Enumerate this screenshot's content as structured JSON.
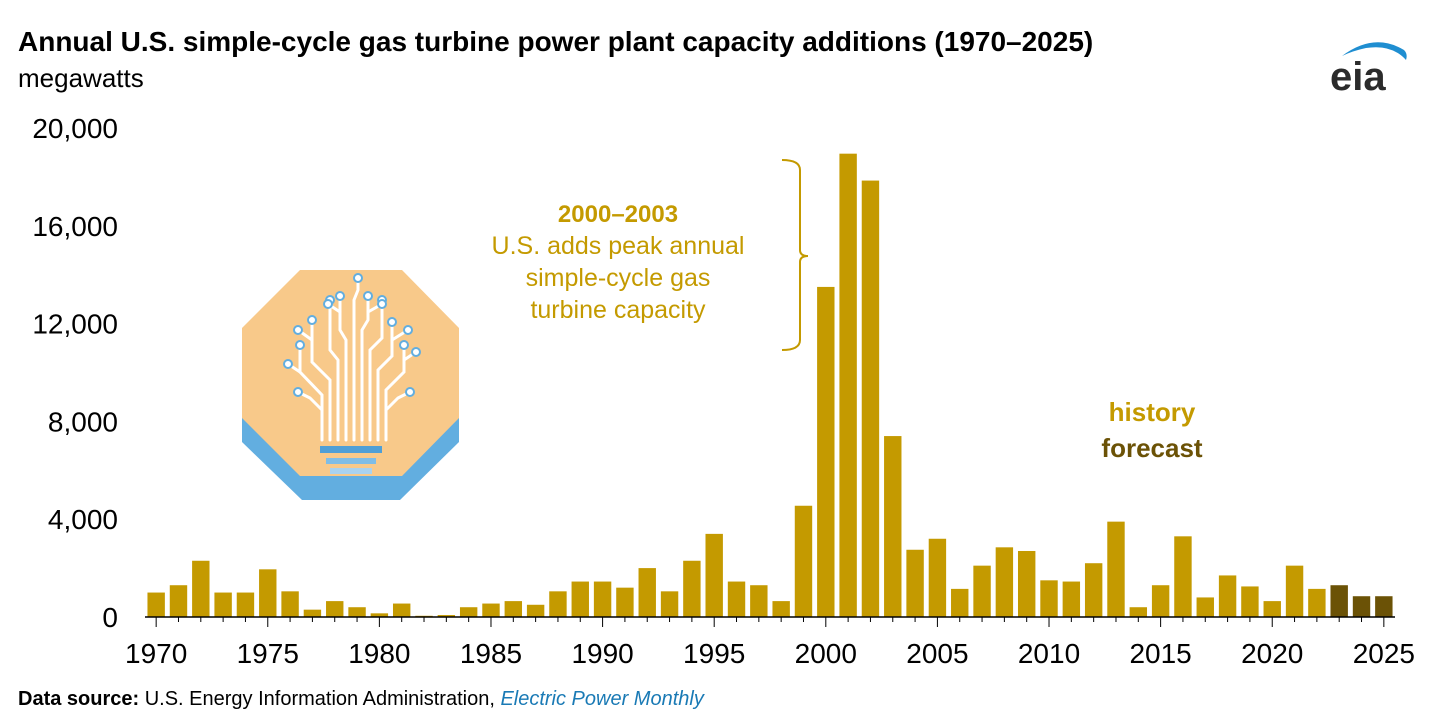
{
  "title": "Annual U.S. simple-cycle gas turbine power plant capacity additions (1970–2025)",
  "subtitle": "megawatts",
  "logo_text": "eia",
  "annotation": {
    "heading": "2000–2003",
    "lines": [
      "U.S. adds peak annual",
      "simple-cycle gas",
      "turbine capacity"
    ]
  },
  "legend": {
    "history": "history",
    "forecast": "forecast"
  },
  "footer": {
    "label": "Data source:",
    "source": "U.S. Energy Information Administration,",
    "publication": "Electric Power Monthly"
  },
  "colors": {
    "history": "#c49a00",
    "forecast": "#6b5206",
    "annotation": "#c49a00",
    "icon_bg": "#f8c98a",
    "icon_base": "#62aee0"
  },
  "chart_data": {
    "type": "bar",
    "title": "Annual U.S. simple-cycle gas turbine power plant capacity additions (1970–2025)",
    "ylabel": "megawatts",
    "xlabel": "",
    "ylim": [
      0,
      20000
    ],
    "yticks": [
      0,
      4000,
      8000,
      12000,
      16000,
      20000
    ],
    "ytick_labels": [
      "0",
      "4,000",
      "8,000",
      "12,000",
      "16,000",
      "20,000"
    ],
    "xtick_labels": [
      "1970",
      "1975",
      "1980",
      "1985",
      "1990",
      "1995",
      "2000",
      "2005",
      "2010",
      "2015",
      "2020",
      "2025"
    ],
    "x": [
      1970,
      1971,
      1972,
      1973,
      1974,
      1975,
      1976,
      1977,
      1978,
      1979,
      1980,
      1981,
      1982,
      1983,
      1984,
      1985,
      1986,
      1987,
      1988,
      1989,
      1990,
      1991,
      1992,
      1993,
      1994,
      1995,
      1996,
      1997,
      1998,
      1999,
      2000,
      2001,
      2002,
      2003,
      2004,
      2005,
      2006,
      2007,
      2008,
      2009,
      2010,
      2011,
      2012,
      2013,
      2014,
      2015,
      2016,
      2017,
      2018,
      2019,
      2020,
      2021,
      2022,
      2023,
      2024,
      2025
    ],
    "series": [
      {
        "name": "history",
        "values": [
          1000,
          1300,
          2300,
          1000,
          1000,
          1950,
          1050,
          300,
          650,
          400,
          150,
          550,
          50,
          80,
          400,
          550,
          650,
          500,
          1050,
          1450,
          1450,
          1200,
          2000,
          1050,
          2300,
          3400,
          1450,
          1300,
          650,
          4550,
          13500,
          18950,
          17850,
          7400,
          2750,
          3200,
          1150,
          2100,
          2850,
          2700,
          1500,
          1450,
          2200,
          3900,
          400,
          1300,
          3300,
          800,
          1700,
          1250,
          650,
          2100,
          1150,
          0,
          0,
          0
        ]
      },
      {
        "name": "forecast",
        "values": [
          0,
          0,
          0,
          0,
          0,
          0,
          0,
          0,
          0,
          0,
          0,
          0,
          0,
          0,
          0,
          0,
          0,
          0,
          0,
          0,
          0,
          0,
          0,
          0,
          0,
          0,
          0,
          0,
          0,
          0,
          0,
          0,
          0,
          0,
          0,
          0,
          0,
          0,
          0,
          0,
          0,
          0,
          0,
          0,
          0,
          0,
          0,
          0,
          0,
          0,
          0,
          0,
          0,
          1300,
          850,
          850
        ]
      }
    ],
    "annotation_range": [
      2000,
      2003
    ]
  }
}
